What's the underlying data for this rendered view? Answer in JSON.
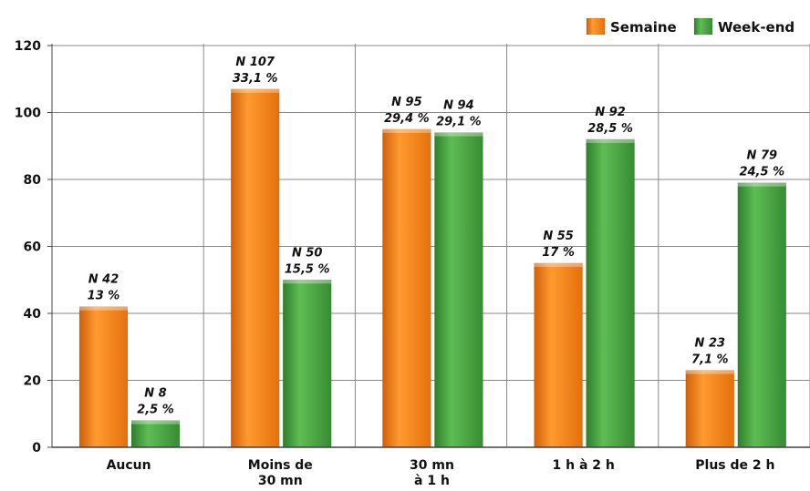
{
  "chart_data": {
    "type": "bar",
    "categories": [
      [
        "Aucun"
      ],
      [
        "Moins de",
        "30 mn"
      ],
      [
        "30 mn",
        "à 1 h"
      ],
      [
        "1 h à 2 h"
      ],
      [
        "Plus de 2 h"
      ]
    ],
    "series": [
      {
        "name": "Semaine",
        "color": "#f07d12",
        "values": [
          42,
          107,
          95,
          55,
          23
        ],
        "labels": [
          [
            "N 42",
            "13 %"
          ],
          [
            "N 107",
            "33,1 %"
          ],
          [
            "N 95",
            "29,4 %"
          ],
          [
            "N 55",
            "17 %"
          ],
          [
            "N 23",
            "7,1 %"
          ]
        ]
      },
      {
        "name": "Week-end",
        "color": "#3f9a3a",
        "values": [
          8,
          50,
          94,
          92,
          79
        ],
        "labels": [
          [
            "N 8",
            "2,5 %"
          ],
          [
            "N 50",
            "15,5 %"
          ],
          [
            "N 94",
            "29,1 %"
          ],
          [
            "N 92",
            "28,5 %"
          ],
          [
            "N 79",
            "24,5 %"
          ]
        ]
      }
    ],
    "ylim": [
      0,
      120
    ],
    "yticks": [
      0,
      20,
      40,
      60,
      80,
      100,
      120
    ],
    "grid": true,
    "legend": "top-right",
    "title": "",
    "xlabel": "",
    "ylabel": ""
  }
}
